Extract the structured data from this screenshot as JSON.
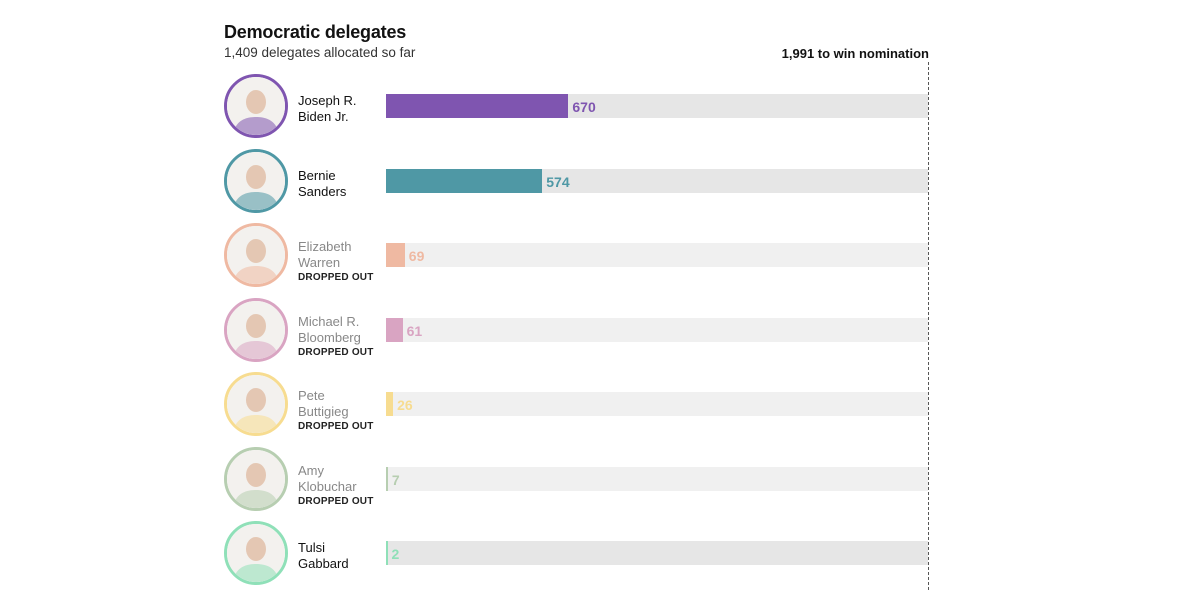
{
  "chart_data": {
    "type": "bar",
    "orientation": "horizontal",
    "title": "Democratic delegates",
    "subtitle": "1,409 delegates allocated so far",
    "threshold": {
      "value": 1991,
      "label": "1,991 to win nomination"
    },
    "xlim": [
      0,
      1991
    ],
    "grid": false,
    "categories": [
      [
        "Joseph R.",
        "Biden Jr."
      ],
      [
        "Bernie",
        "Sanders"
      ],
      [
        "Elizabeth",
        "Warren"
      ],
      [
        "Michael R.",
        "Bloomberg"
      ],
      [
        "Pete",
        "Buttigieg"
      ],
      [
        "Amy",
        "Klobuchar"
      ],
      [
        "Tulsi",
        "Gabbard"
      ]
    ],
    "values": [
      670,
      574,
      69,
      61,
      26,
      7,
      2
    ],
    "value_labels": [
      "670",
      "574",
      "69",
      "61",
      "26",
      "7",
      "2"
    ],
    "status": [
      "",
      "",
      "DROPPED OUT",
      "DROPPED OUT",
      "DROPPED OUT",
      "DROPPED OUT",
      ""
    ],
    "colors": [
      "#7f55b0",
      "#4f98a5",
      "#efb9a2",
      "#d9a4c2",
      "#f7dc90",
      "#b7ceb1",
      "#8fe0b8"
    ],
    "name_colors": [
      "#121212",
      "#121212",
      "#888888",
      "#888888",
      "#888888",
      "#888888",
      "#121212"
    ],
    "photo_icons": [
      "portrait-icon",
      "portrait-icon",
      "portrait-icon",
      "portrait-icon",
      "portrait-icon",
      "portrait-icon",
      "portrait-icon"
    ]
  }
}
